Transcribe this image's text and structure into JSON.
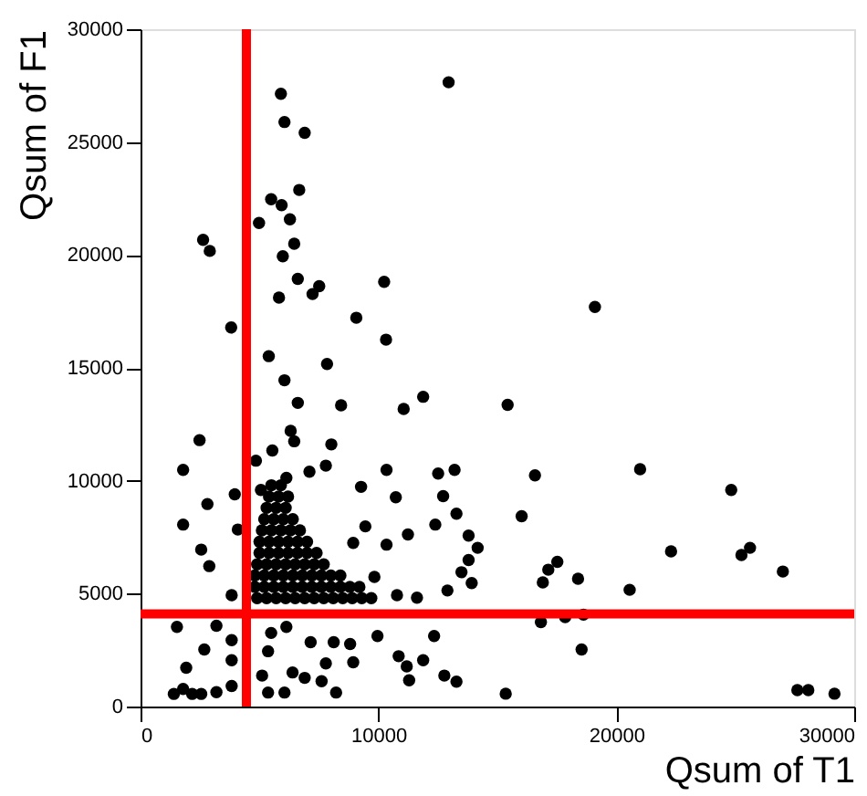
{
  "chart_data": {
    "type": "scatter",
    "xlabel": "Qsum of T1",
    "ylabel": "Qsum of F1",
    "xlim": [
      0,
      30000
    ],
    "ylim": [
      0,
      30000
    ],
    "xticks": [
      0,
      10000,
      20000,
      30000
    ],
    "yticks": [
      0,
      5000,
      10000,
      15000,
      20000,
      25000,
      30000
    ],
    "grid": false,
    "marker": "circle",
    "ref_lines": [
      {
        "axis": "x",
        "value": 4450,
        "color": "#ff0000"
      },
      {
        "axis": "y",
        "value": 4100,
        "color": "#ff0000"
      }
    ],
    "series": [
      {
        "color": "#000000",
        "x": [
          12950,
          5900,
          6050,
          6900,
          6670,
          5490,
          5930,
          6280,
          4980,
          2630,
          2910,
          6460,
          5980,
          6610,
          7510,
          7230,
          10240,
          5820,
          9070,
          3810,
          10320,
          5390,
          7840,
          6050,
          19100,
          15430,
          16580,
          21000,
          16020,
          24830,
          22300,
          25260,
          25620,
          27000,
          17520,
          17140,
          16910,
          18390,
          20560,
          16830,
          17850,
          18620,
          18540,
          15350,
          27610,
          28070,
          29170,
          11880,
          11060,
          6610,
          8430,
          6310,
          6460,
          8020,
          2480,
          5540,
          4850,
          1790,
          7790,
          7100,
          10340,
          12510,
          13200,
          6130,
          3960,
          5060,
          9270,
          10730,
          12720,
          2810,
          13280,
          1790,
          4090,
          9450,
          12390,
          13790,
          11240,
          10340,
          8940,
          2550,
          2890,
          14170,
          13790,
          13490,
          13920,
          12900,
          11620,
          10780,
          9830,
          3830,
          1530,
          3190,
          5490,
          6130,
          5360,
          3830,
          2680,
          1920,
          3830,
          7150,
          8120,
          8810,
          7790,
          8940,
          9960,
          10850,
          11880,
          12340,
          11190,
          12770,
          13280,
          11290,
          5110,
          6390,
          6900,
          7610,
          8220,
          5360,
          6050,
          3830,
          3190,
          2550,
          1400,
          1790,
          2170,
          4900,
          5300,
          5700,
          6100,
          6500,
          6900,
          7300,
          7700,
          8100,
          8500,
          8900,
          9300,
          9700,
          4800,
          5200,
          5600,
          6000,
          6400,
          6800,
          7200,
          7600,
          8000,
          8400,
          8800,
          9200,
          4800,
          5200,
          5600,
          6000,
          6400,
          6800,
          7200,
          7600,
          8000,
          8400,
          4900,
          5300,
          5700,
          6100,
          6500,
          6900,
          7300,
          7700,
          5000,
          5400,
          5800,
          6200,
          6600,
          7000,
          7400,
          5000,
          5400,
          5800,
          6200,
          6600,
          7000,
          5100,
          5500,
          5900,
          6300,
          6700,
          5200,
          5600,
          6000,
          6400,
          5300,
          5700,
          6100,
          5400,
          5800,
          6200,
          5500,
          5900
        ],
        "values": [
          27650,
          27140,
          25890,
          25410,
          22880,
          22470,
          22210,
          21580,
          21420,
          20670,
          20180,
          20500,
          19940,
          18940,
          18620,
          18270,
          18810,
          18110,
          17220,
          16790,
          16250,
          15520,
          15170,
          14450,
          17700,
          13360,
          10240,
          10510,
          8430,
          9590,
          6870,
          6710,
          7030,
          5980,
          6410,
          6060,
          5500,
          5660,
          5170,
          3740,
          3960,
          4070,
          2530,
          570,
          730,
          730,
          570,
          13720,
          13180,
          13450,
          13340,
          12210,
          11750,
          11610,
          11800,
          11340,
          10890,
          10480,
          10670,
          10400,
          10480,
          10320,
          10480,
          10130,
          9400,
          9590,
          9730,
          9270,
          9320,
          8970,
          8540,
          8060,
          7840,
          7980,
          8060,
          7570,
          7620,
          7170,
          7250,
          6950,
          6220,
          7030,
          6490,
          5950,
          5470,
          5140,
          4820,
          4930,
          5740,
          4930,
          3530,
          3580,
          3260,
          3530,
          2450,
          2940,
          2530,
          1720,
          2050,
          2850,
          2850,
          2770,
          1910,
          1960,
          3120,
          2230,
          2050,
          3120,
          1780,
          1370,
          1100,
          1160,
          1370,
          1510,
          1270,
          1120,
          620,
          620,
          620,
          910,
          640,
          560,
          560,
          780,
          560,
          4800,
          4800,
          4800,
          4800,
          4800,
          4800,
          4800,
          4800,
          4800,
          4800,
          4800,
          4800,
          4800,
          5300,
          5300,
          5300,
          5300,
          5300,
          5300,
          5300,
          5300,
          5300,
          5300,
          5300,
          5300,
          5800,
          5800,
          5800,
          5800,
          5800,
          5800,
          5800,
          5800,
          5800,
          5800,
          6300,
          6300,
          6300,
          6300,
          6300,
          6300,
          6300,
          6300,
          6800,
          6800,
          6800,
          6800,
          6800,
          6800,
          6800,
          7300,
          7300,
          7300,
          7300,
          7300,
          7300,
          7800,
          7800,
          7800,
          7800,
          7800,
          8300,
          8300,
          8300,
          8300,
          8800,
          8800,
          8800,
          9300,
          9300,
          9300,
          9800,
          9800
        ]
      }
    ]
  }
}
